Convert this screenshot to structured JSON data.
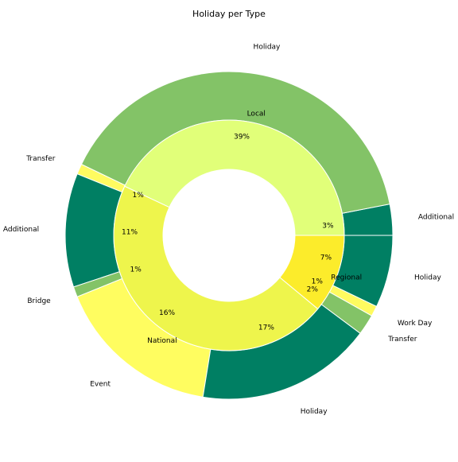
{
  "chart_data": {
    "type": "pie",
    "title": "Holiday per Type",
    "inner": [
      {
        "label": "Local",
        "pct": 43,
        "color": "#e1ff79"
      },
      {
        "label": "National",
        "pct": 46,
        "color": "#eef54c"
      },
      {
        "label": "Regional",
        "pct": 11,
        "color": "#fcec2b"
      }
    ],
    "outer": [
      {
        "label": "Additional",
        "pct": 3,
        "pct_label": "3%",
        "color": "#007f63"
      },
      {
        "label": "Holiday",
        "pct": 39,
        "pct_label": "39%",
        "color": "#83c367"
      },
      {
        "label": "Transfer",
        "pct": 1,
        "pct_label": "1%",
        "color": "#fffb60"
      },
      {
        "label": "Additional",
        "pct": 11,
        "pct_label": "11%",
        "color": "#007f63"
      },
      {
        "label": "Bridge",
        "pct": 1,
        "pct_label": "1%",
        "color": "#83c367"
      },
      {
        "label": "Event",
        "pct": 16,
        "pct_label": "16%",
        "color": "#fffd60"
      },
      {
        "label": "Holiday",
        "pct": 17,
        "pct_label": "17%",
        "color": "#007f63"
      },
      {
        "label": "Transfer",
        "pct": 2,
        "pct_label": "2%",
        "color": "#83c367"
      },
      {
        "label": "Work Day",
        "pct": 1,
        "pct_label": "1%",
        "color": "#fffb5f"
      },
      {
        "label": "Holiday",
        "pct": 7,
        "pct_label": "7%",
        "color": "#007f63"
      }
    ]
  }
}
